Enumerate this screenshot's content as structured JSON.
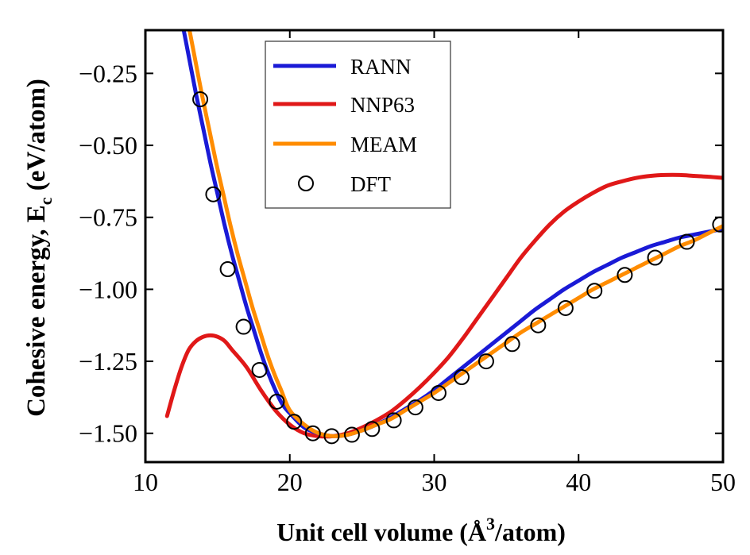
{
  "chart_data": {
    "type": "line",
    "title": "",
    "xlabel": "Unit cell volume (Å³/atom)",
    "xlabel_parts": {
      "main": "Unit cell volume (Å",
      "sup": "3",
      "tail": "/atom)"
    },
    "ylabel": "Cohesive energy, E_c (eV/atom)",
    "ylabel_parts": {
      "main": "Cohesive energy, E",
      "sub": "c",
      "tail": " (eV/atom)"
    },
    "xlim": [
      10,
      50
    ],
    "ylim": [
      -1.6,
      -0.1
    ],
    "xticks": [
      10,
      20,
      30,
      40,
      50
    ],
    "xtick_labels": [
      "10",
      "20",
      "30",
      "40",
      "50"
    ],
    "yticks": [
      -1.5,
      -1.25,
      -1.0,
      -0.75,
      -0.5,
      -0.25
    ],
    "ytick_labels": [
      "−1.50",
      "−1.25",
      "−1.00",
      "−0.75",
      "−0.50",
      "−0.25"
    ],
    "legend_position": "top-left",
    "series": [
      {
        "name": "RANN",
        "color": "#1a1ad6",
        "style": "line",
        "x": [
          12.5,
          13.0,
          13.5,
          14.0,
          14.5,
          15.0,
          15.5,
          16.0,
          16.5,
          17.0,
          17.5,
          18.0,
          18.5,
          19.0,
          19.5,
          20.0,
          21.0,
          22.0,
          23.0,
          24.0,
          25.0,
          26.0,
          27.0,
          28.0,
          29.0,
          30.0,
          31.0,
          32.0,
          33.0,
          34.0,
          35.0,
          36.0,
          37.0,
          38.0,
          39.0,
          40.0,
          41.0,
          42.0,
          43.0,
          44.0,
          45.0,
          46.0,
          47.0,
          48.0,
          49.0,
          50.0
        ],
        "y": [
          -0.06,
          -0.19,
          -0.32,
          -0.44,
          -0.56,
          -0.67,
          -0.78,
          -0.88,
          -0.97,
          -1.06,
          -1.14,
          -1.22,
          -1.29,
          -1.35,
          -1.4,
          -1.43,
          -1.48,
          -1.5,
          -1.51,
          -1.505,
          -1.49,
          -1.47,
          -1.445,
          -1.415,
          -1.385,
          -1.35,
          -1.31,
          -1.27,
          -1.23,
          -1.19,
          -1.15,
          -1.11,
          -1.07,
          -1.035,
          -1.0,
          -0.97,
          -0.94,
          -0.915,
          -0.89,
          -0.87,
          -0.85,
          -0.835,
          -0.82,
          -0.81,
          -0.8,
          -0.79
        ]
      },
      {
        "name": "NNP63",
        "color": "#e01818",
        "style": "line",
        "x": [
          11.5,
          12.0,
          12.5,
          13.0,
          13.5,
          14.0,
          14.5,
          15.0,
          15.5,
          16.0,
          17.0,
          18.0,
          19.0,
          20.0,
          21.0,
          22.0,
          23.0,
          24.0,
          25.0,
          26.0,
          27.0,
          28.0,
          29.0,
          30.0,
          31.0,
          32.0,
          33.0,
          34.0,
          35.0,
          36.0,
          37.0,
          38.0,
          39.0,
          40.0,
          41.0,
          42.0,
          43.0,
          44.0,
          45.0,
          46.0,
          47.0,
          48.0,
          49.0,
          50.0
        ],
        "y": [
          -1.44,
          -1.35,
          -1.27,
          -1.21,
          -1.18,
          -1.165,
          -1.16,
          -1.165,
          -1.18,
          -1.21,
          -1.27,
          -1.35,
          -1.42,
          -1.47,
          -1.5,
          -1.51,
          -1.51,
          -1.5,
          -1.48,
          -1.455,
          -1.425,
          -1.385,
          -1.34,
          -1.29,
          -1.235,
          -1.17,
          -1.1,
          -1.03,
          -0.96,
          -0.89,
          -0.83,
          -0.775,
          -0.73,
          -0.695,
          -0.665,
          -0.64,
          -0.625,
          -0.613,
          -0.606,
          -0.603,
          -0.603,
          -0.606,
          -0.609,
          -0.613
        ]
      },
      {
        "name": "MEAM",
        "color": "#ff8c00",
        "style": "line",
        "x": [
          12.9,
          13.4,
          13.9,
          14.4,
          14.9,
          15.4,
          15.9,
          16.4,
          16.9,
          17.4,
          17.9,
          18.4,
          18.9,
          19.4,
          20.0,
          21.0,
          22.0,
          23.0,
          24.0,
          25.0,
          26.0,
          27.0,
          28.0,
          29.0,
          30.0,
          31.0,
          32.0,
          33.0,
          34.0,
          35.0,
          36.0,
          37.0,
          38.0,
          39.0,
          40.0,
          41.0,
          42.0,
          43.0,
          44.0,
          45.0,
          46.0,
          47.0,
          48.0,
          49.0,
          50.0
        ],
        "y": [
          -0.06,
          -0.19,
          -0.32,
          -0.44,
          -0.56,
          -0.67,
          -0.78,
          -0.88,
          -0.97,
          -1.06,
          -1.14,
          -1.22,
          -1.29,
          -1.35,
          -1.42,
          -1.47,
          -1.5,
          -1.51,
          -1.505,
          -1.49,
          -1.47,
          -1.45,
          -1.42,
          -1.39,
          -1.36,
          -1.325,
          -1.29,
          -1.255,
          -1.22,
          -1.185,
          -1.15,
          -1.12,
          -1.09,
          -1.06,
          -1.03,
          -1.0,
          -0.975,
          -0.95,
          -0.925,
          -0.9,
          -0.875,
          -0.85,
          -0.83,
          -0.805,
          -0.78
        ]
      },
      {
        "name": "DFT",
        "color": "#000000",
        "style": "marker",
        "x": [
          13.8,
          14.7,
          15.7,
          16.8,
          17.9,
          19.1,
          20.3,
          21.6,
          22.9,
          24.3,
          25.7,
          27.2,
          28.7,
          30.3,
          31.9,
          33.6,
          35.4,
          37.2,
          39.1,
          41.1,
          43.2,
          45.3,
          47.5,
          49.8
        ],
        "y": [
          -0.34,
          -0.67,
          -0.93,
          -1.13,
          -1.28,
          -1.39,
          -1.46,
          -1.5,
          -1.51,
          -1.505,
          -1.485,
          -1.455,
          -1.41,
          -1.36,
          -1.305,
          -1.25,
          -1.19,
          -1.125,
          -1.065,
          -1.005,
          -0.95,
          -0.89,
          -0.835,
          -0.775
        ]
      }
    ]
  }
}
